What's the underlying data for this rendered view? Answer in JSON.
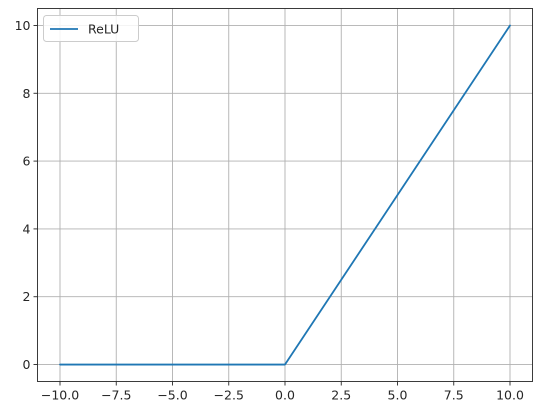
{
  "chart_data": {
    "type": "line",
    "title": "",
    "xlabel": "",
    "ylabel": "",
    "xlim": [
      -11.0,
      11.0
    ],
    "ylim": [
      -0.5,
      10.5
    ],
    "grid": true,
    "legend_position": "top-left",
    "x_ticks": [
      -10.0,
      -7.5,
      -5.0,
      -2.5,
      0.0,
      2.5,
      5.0,
      7.5,
      10.0
    ],
    "x_tick_labels": [
      "−10.0",
      "−7.5",
      "−5.0",
      "−2.5",
      "0.0",
      "2.5",
      "5.0",
      "7.5",
      "10.0"
    ],
    "y_ticks": [
      0,
      2,
      4,
      6,
      8,
      10
    ],
    "y_tick_labels": [
      "0",
      "2",
      "4",
      "6",
      "8",
      "10"
    ],
    "series": [
      {
        "name": "ReLU",
        "color": "#1f77b4",
        "x": [
          -10,
          -7.5,
          -5,
          -2.5,
          0,
          2.5,
          5,
          7.5,
          10
        ],
        "y": [
          0,
          0,
          0,
          0,
          0,
          2.5,
          5,
          7.5,
          10
        ]
      }
    ]
  }
}
